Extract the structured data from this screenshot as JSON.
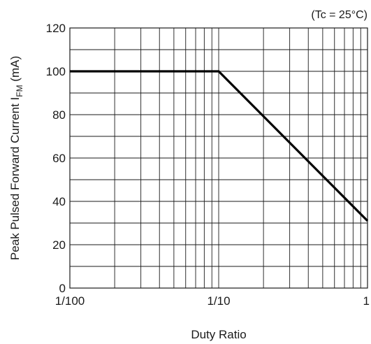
{
  "chart_data": {
    "type": "line",
    "title": "",
    "condition": "(Tc = 25°C)",
    "xlabel": "Duty Ratio",
    "ylabel": {
      "main": "Peak Pulsed Forward Current I",
      "subscript": "FM",
      "unit": " (mA)"
    },
    "xscale": "log",
    "xlim": [
      0.01,
      1
    ],
    "ylim": [
      0,
      120
    ],
    "grid": true,
    "x_ticks": [
      {
        "value": 0.01,
        "label": "1/100"
      },
      {
        "value": 0.1,
        "label": "1/10"
      },
      {
        "value": 1,
        "label": "1"
      }
    ],
    "y_ticks": [
      {
        "value": 0,
        "label": "0"
      },
      {
        "value": 20,
        "label": "20"
      },
      {
        "value": 40,
        "label": "40"
      },
      {
        "value": 60,
        "label": "60"
      },
      {
        "value": 80,
        "label": "80"
      },
      {
        "value": 100,
        "label": "100"
      },
      {
        "value": 120,
        "label": "120"
      }
    ],
    "y_minor_step": 10,
    "series": [
      {
        "x": [
          0.01,
          0.1,
          1
        ],
        "y": [
          100,
          100,
          31
        ]
      }
    ]
  }
}
